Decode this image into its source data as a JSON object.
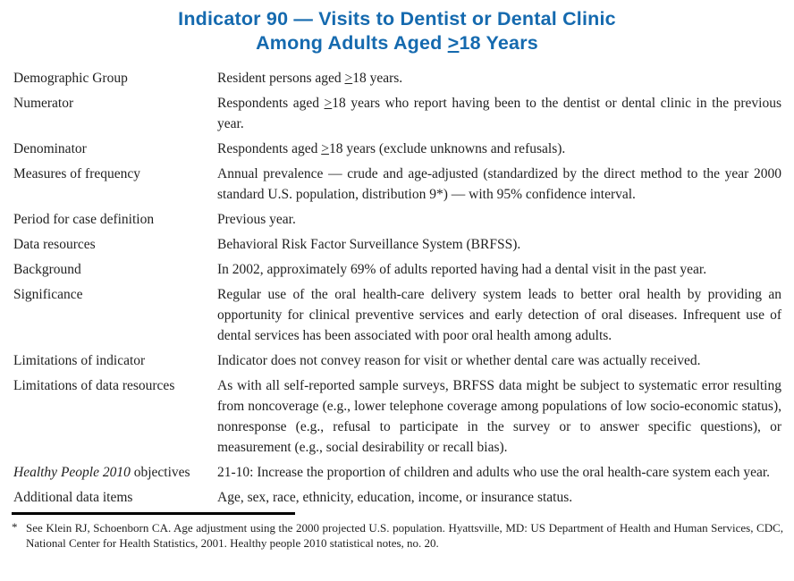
{
  "colors": {
    "title-blue": "#156aaf",
    "body-text": "#1f1f1f",
    "rule-black": "#000000"
  },
  "header": {
    "line1": "Indicator 90 — Visits to Dentist or Dental Clinic",
    "line2": "Among Adults Aged ≥18 Years"
  },
  "table": {
    "rows": [
      {
        "label": "Demographic Group",
        "value": "Resident persons aged ≥18 years."
      },
      {
        "label": "Numerator",
        "value": "Respondents aged ≥18 years who report having been to the dentist or dental clinic in the previous year."
      },
      {
        "label": "Denominator",
        "value": "Respondents aged ≥18 years (exclude unknowns and refusals)."
      },
      {
        "label": "Measures of frequency",
        "value": "Annual prevalence — crude and age-adjusted (standardized by the direct method to the year 2000 standard U.S. population, distribution 9*) — with 95% confidence interval."
      },
      {
        "label": "Period for case definition",
        "value": "Previous year."
      },
      {
        "label": "Data resources",
        "value": "Behavioral Risk Factor Surveillance System (BRFSS)."
      },
      {
        "label": "Background",
        "value": "In 2002, approximately 69% of adults reported having had a dental visit in the past year."
      },
      {
        "label": "Significance",
        "value": "Regular use of the oral health-care delivery system leads to better oral health by providing an opportunity for clinical preventive services and early detection of oral diseases. Infrequent use of dental services has been associated with poor oral health among adults."
      },
      {
        "label": "Limitations of indicator",
        "value": "Indicator does not convey reason for visit or whether dental care was actually received."
      },
      {
        "label": "Limitations of data resources",
        "value": "As with all self-reported sample surveys, BRFSS data might be subject to systematic error resulting from noncoverage (e.g., lower telephone coverage among populations of low socio-economic status), nonresponse (e.g., refusal to participate in the survey or to answer specific questions), or measurement (e.g., social desirability or recall bias)."
      },
      {
        "label_italic": "Healthy People 2010",
        "label_rest": " objectives",
        "value": "21-10: Increase the proportion of children and adults who use the oral health-care system each year."
      },
      {
        "label": "Additional data items",
        "value": "Age, sex, race, ethnicity, education, income, or insurance status."
      }
    ]
  },
  "footnote": {
    "marker": "*",
    "text": "See Klein RJ, Schoenborn CA. Age adjustment using the 2000 projected U.S. population. Hyattsville, MD: US Department of Health and Human Services, CDC, National Center for Health Statistics, 2001. Healthy people 2010 statistical notes, no. 20."
  }
}
